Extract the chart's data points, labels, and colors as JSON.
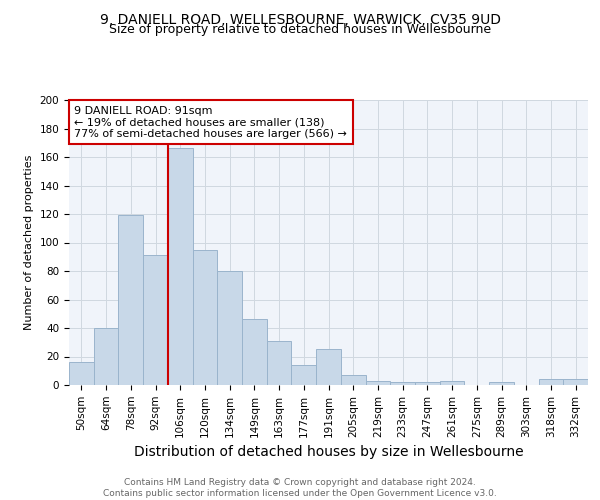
{
  "title": "9, DANIELL ROAD, WELLESBOURNE, WARWICK, CV35 9UD",
  "subtitle": "Size of property relative to detached houses in Wellesbourne",
  "xlabel": "Distribution of detached houses by size in Wellesbourne",
  "ylabel": "Number of detached properties",
  "categories": [
    "50sqm",
    "64sqm",
    "78sqm",
    "92sqm",
    "106sqm",
    "120sqm",
    "134sqm",
    "149sqm",
    "163sqm",
    "177sqm",
    "191sqm",
    "205sqm",
    "219sqm",
    "233sqm",
    "247sqm",
    "261sqm",
    "275sqm",
    "289sqm",
    "303sqm",
    "318sqm",
    "332sqm"
  ],
  "values": [
    16,
    40,
    119,
    91,
    166,
    95,
    80,
    46,
    31,
    14,
    25,
    7,
    3,
    2,
    2,
    3,
    0,
    2,
    0,
    4,
    4
  ],
  "bar_color": "#c8d8e8",
  "bar_edge_color": "#9ab4cc",
  "vline_color": "#cc0000",
  "vline_pos": 3.5,
  "annotation_text": "9 DANIELL ROAD: 91sqm\n← 19% of detached houses are smaller (138)\n77% of semi-detached houses are larger (566) →",
  "annotation_box_edge": "#cc0000",
  "annotation_box_face": "#ffffff",
  "ylim": [
    0,
    200
  ],
  "yticks": [
    0,
    20,
    40,
    60,
    80,
    100,
    120,
    140,
    160,
    180,
    200
  ],
  "footer": "Contains HM Land Registry data © Crown copyright and database right 2024.\nContains public sector information licensed under the Open Government Licence v3.0.",
  "grid_color": "#d0d8e0",
  "background_color": "#f0f4fa",
  "title_fontsize": 10,
  "subtitle_fontsize": 9,
  "xlabel_fontsize": 9,
  "ylabel_fontsize": 8,
  "tick_fontsize": 7.5,
  "footer_fontsize": 6.5,
  "annotation_fontsize": 8
}
